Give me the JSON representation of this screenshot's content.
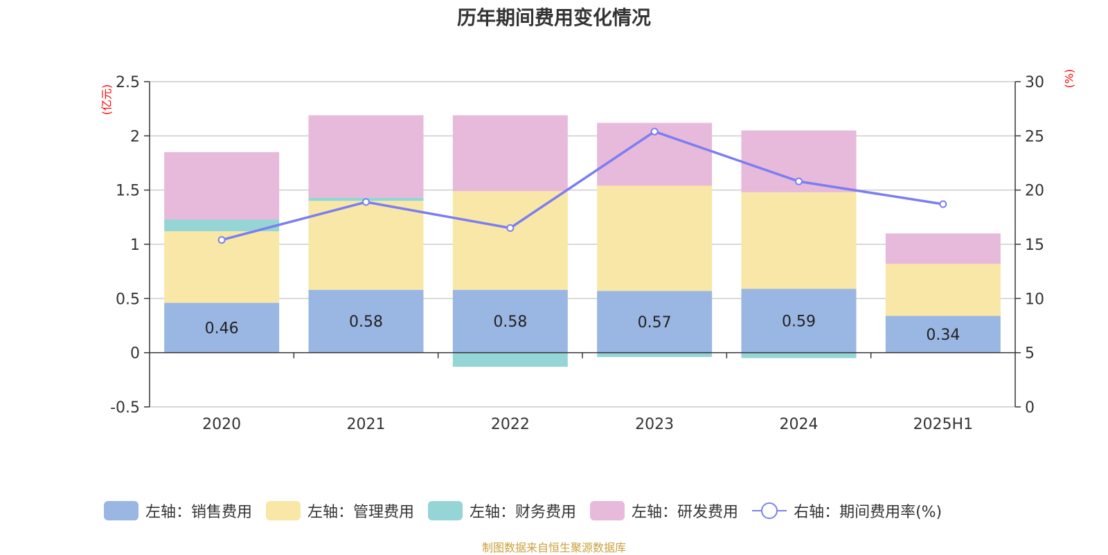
{
  "title": "历年期间费用变化情况",
  "left_unit": "(亿元)",
  "right_unit": "(%)",
  "source": "制图数据来自恒生聚源数据库",
  "colors": {
    "sales": "#9ab6e2",
    "admin": "#f8e7a6",
    "finance": "#96d5d5",
    "rd": "#e7b9da",
    "rate": "#7b7ef0"
  },
  "chart_data": {
    "type": "bar",
    "stacked": true,
    "categories": [
      "2020",
      "2021",
      "2022",
      "2023",
      "2024",
      "2025H1"
    ],
    "series": [
      {
        "name": "左轴：销售费用",
        "axis": "left",
        "values": [
          0.46,
          0.58,
          0.58,
          0.57,
          0.59,
          0.34
        ],
        "labels_shown": true
      },
      {
        "name": "左轴：管理费用",
        "axis": "left",
        "values": [
          0.66,
          0.82,
          0.91,
          0.97,
          0.89,
          0.48
        ]
      },
      {
        "name": "左轴：财务费用",
        "axis": "left",
        "values": [
          0.11,
          0.03,
          -0.13,
          -0.04,
          -0.05,
          0.0
        ]
      },
      {
        "name": "左轴：研发费用",
        "axis": "left",
        "values": [
          0.62,
          0.76,
          0.7,
          0.58,
          0.57,
          0.28
        ]
      },
      {
        "name": "右轴：期间费用率(%)",
        "axis": "right",
        "type": "line",
        "values": [
          15.4,
          18.9,
          16.5,
          25.4,
          20.8,
          18.7
        ]
      }
    ],
    "left_axis": {
      "ylim": [
        -0.5,
        2.5
      ],
      "ticks": [
        "-0.5",
        "0",
        "0.5",
        "1",
        "1.5",
        "2",
        "2.5"
      ]
    },
    "right_axis": {
      "ylim": [
        0,
        30
      ],
      "ticks": [
        "0",
        "5",
        "10",
        "15",
        "20",
        "25",
        "30"
      ]
    },
    "grid": true,
    "legend": "bottom"
  }
}
